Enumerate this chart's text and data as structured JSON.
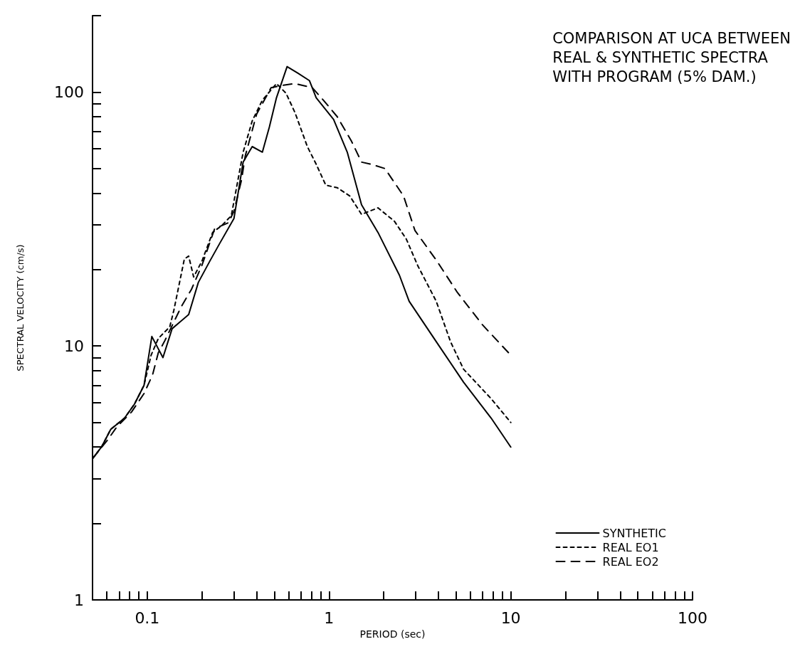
{
  "chart_data": {
    "type": "line",
    "title": "COMPARISON AT UCA BETWEEN\nREAL & SYNTHETIC SPECTRA\nWITH PROGRAM (5% DAM.)",
    "xlabel": "PERIOD (sec)",
    "ylabel": "SPECTRAL VELOCITY (cm/s)",
    "log": "xy",
    "grid": false,
    "legend": "bottom right",
    "marker": "none",
    "xlim": [
      0.05,
      100
    ],
    "ylim": [
      1,
      200
    ],
    "xticks": [
      {
        "value": 0.05,
        "label": null
      },
      {
        "value": 0.06,
        "label": null
      },
      {
        "value": 0.07,
        "label": null
      },
      {
        "value": 0.08,
        "label": null
      },
      {
        "value": 0.09,
        "label": null
      },
      {
        "value": 0.1,
        "label": "0.1"
      },
      {
        "value": 0.2,
        "label": null
      },
      {
        "value": 0.3,
        "label": null
      },
      {
        "value": 0.4,
        "label": null
      },
      {
        "value": 0.5,
        "label": null
      },
      {
        "value": 0.6,
        "label": null
      },
      {
        "value": 0.7,
        "label": null
      },
      {
        "value": 0.8,
        "label": null
      },
      {
        "value": 0.9,
        "label": null
      },
      1,
      {
        "value": 2,
        "label": null
      },
      {
        "value": 3,
        "label": null
      },
      {
        "value": 4,
        "label": null
      },
      {
        "value": 5,
        "label": null
      },
      {
        "value": 6,
        "label": null
      },
      {
        "value": 7,
        "label": null
      },
      {
        "value": 8,
        "label": null
      },
      {
        "value": 9,
        "label": null
      },
      10,
      {
        "value": 20,
        "label": null
      },
      {
        "value": 30,
        "label": null
      },
      {
        "value": 40,
        "label": null
      },
      {
        "value": 50,
        "label": null
      },
      {
        "value": 60,
        "label": null
      },
      {
        "value": 70,
        "label": null
      },
      {
        "value": 80,
        "label": null
      },
      {
        "value": 90,
        "label": null
      },
      100
    ],
    "yticks": [
      1,
      {
        "value": 2,
        "label": null
      },
      {
        "value": 3,
        "label": null
      },
      {
        "value": 4,
        "label": null
      },
      {
        "value": 5,
        "label": null
      },
      {
        "value": 6,
        "label": null
      },
      {
        "value": 7,
        "label": null
      },
      {
        "value": 8,
        "label": null
      },
      {
        "value": 9,
        "label": null
      },
      10,
      {
        "value": 20,
        "label": null
      },
      {
        "value": 30,
        "label": null
      },
      {
        "value": 40,
        "label": null
      },
      {
        "value": 50,
        "label": null
      },
      {
        "value": 60,
        "label": null
      },
      {
        "value": 70,
        "label": null
      },
      {
        "value": 80,
        "label": null
      },
      {
        "value": 90,
        "label": null
      },
      100,
      {
        "value": 200,
        "label": null
      }
    ],
    "series": [
      {
        "name": "SYNTHETIC",
        "color": "#000000",
        "line_style": "solid",
        "x": [
          0.05,
          0.056,
          0.063,
          0.075,
          0.085,
          0.096,
          0.106,
          0.122,
          0.137,
          0.169,
          0.191,
          0.221,
          0.25,
          0.3,
          0.337,
          0.378,
          0.43,
          0.47,
          0.514,
          0.588,
          0.67,
          0.78,
          0.85,
          1.06,
          1.26,
          1.51,
          1.86,
          2.44,
          2.76,
          3.89,
          5.5,
          7.8,
          10
        ],
        "values": [
          3.6,
          4.0,
          4.7,
          5.2,
          5.9,
          7.0,
          10.9,
          9.0,
          11.7,
          13.3,
          17.8,
          21.6,
          25.3,
          31.8,
          53,
          61,
          58,
          73,
          95,
          126,
          119,
          111,
          95,
          78,
          58,
          36,
          28,
          19,
          15,
          10.4,
          7.2,
          5.2,
          4.0
        ]
      },
      {
        "name": "REAL EO1",
        "color": "#000000",
        "line_style": "dotted",
        "x": [
          0.05,
          0.056,
          0.063,
          0.075,
          0.085,
          0.096,
          0.105,
          0.115,
          0.133,
          0.14,
          0.16,
          0.169,
          0.18,
          0.2,
          0.229,
          0.257,
          0.29,
          0.337,
          0.378,
          0.43,
          0.514,
          0.58,
          0.65,
          0.76,
          0.85,
          0.96,
          1.11,
          1.3,
          1.51,
          1.86,
          2.29,
          2.66,
          3.08,
          3.89,
          4.66,
          5.5,
          7.8,
          10
        ],
        "values": [
          3.6,
          4.0,
          4.7,
          5.2,
          5.9,
          7.0,
          9.2,
          10.7,
          11.9,
          13.8,
          22,
          22.6,
          18.7,
          21.6,
          28,
          29.8,
          32.6,
          58,
          77,
          93,
          108,
          99,
          83,
          61,
          52,
          43,
          42,
          39,
          33,
          35,
          31,
          26.4,
          20.7,
          15,
          10.4,
          8.1,
          6.2,
          5.0
        ]
      },
      {
        "name": "REAL EO2",
        "color": "#000000",
        "line_style": "dashed",
        "x": [
          0.05,
          0.061,
          0.068,
          0.082,
          0.096,
          0.107,
          0.115,
          0.125,
          0.154,
          0.175,
          0.2,
          0.235,
          0.28,
          0.3,
          0.33,
          0.346,
          0.4,
          0.48,
          0.54,
          0.65,
          0.81,
          0.93,
          1.11,
          1.33,
          1.51,
          1.7,
          2.03,
          2.57,
          2.97,
          3.89,
          5.1,
          7.0,
          10
        ],
        "values": [
          3.6,
          4.3,
          4.8,
          5.5,
          6.5,
          7.7,
          9.4,
          10.5,
          14.3,
          16.7,
          20.8,
          29,
          30.6,
          34,
          45,
          56,
          82,
          104,
          106,
          108,
          104,
          93,
          80,
          64,
          53,
          52,
          50,
          39,
          28.5,
          21.8,
          16.2,
          12.1,
          9.2
        ]
      }
    ]
  }
}
